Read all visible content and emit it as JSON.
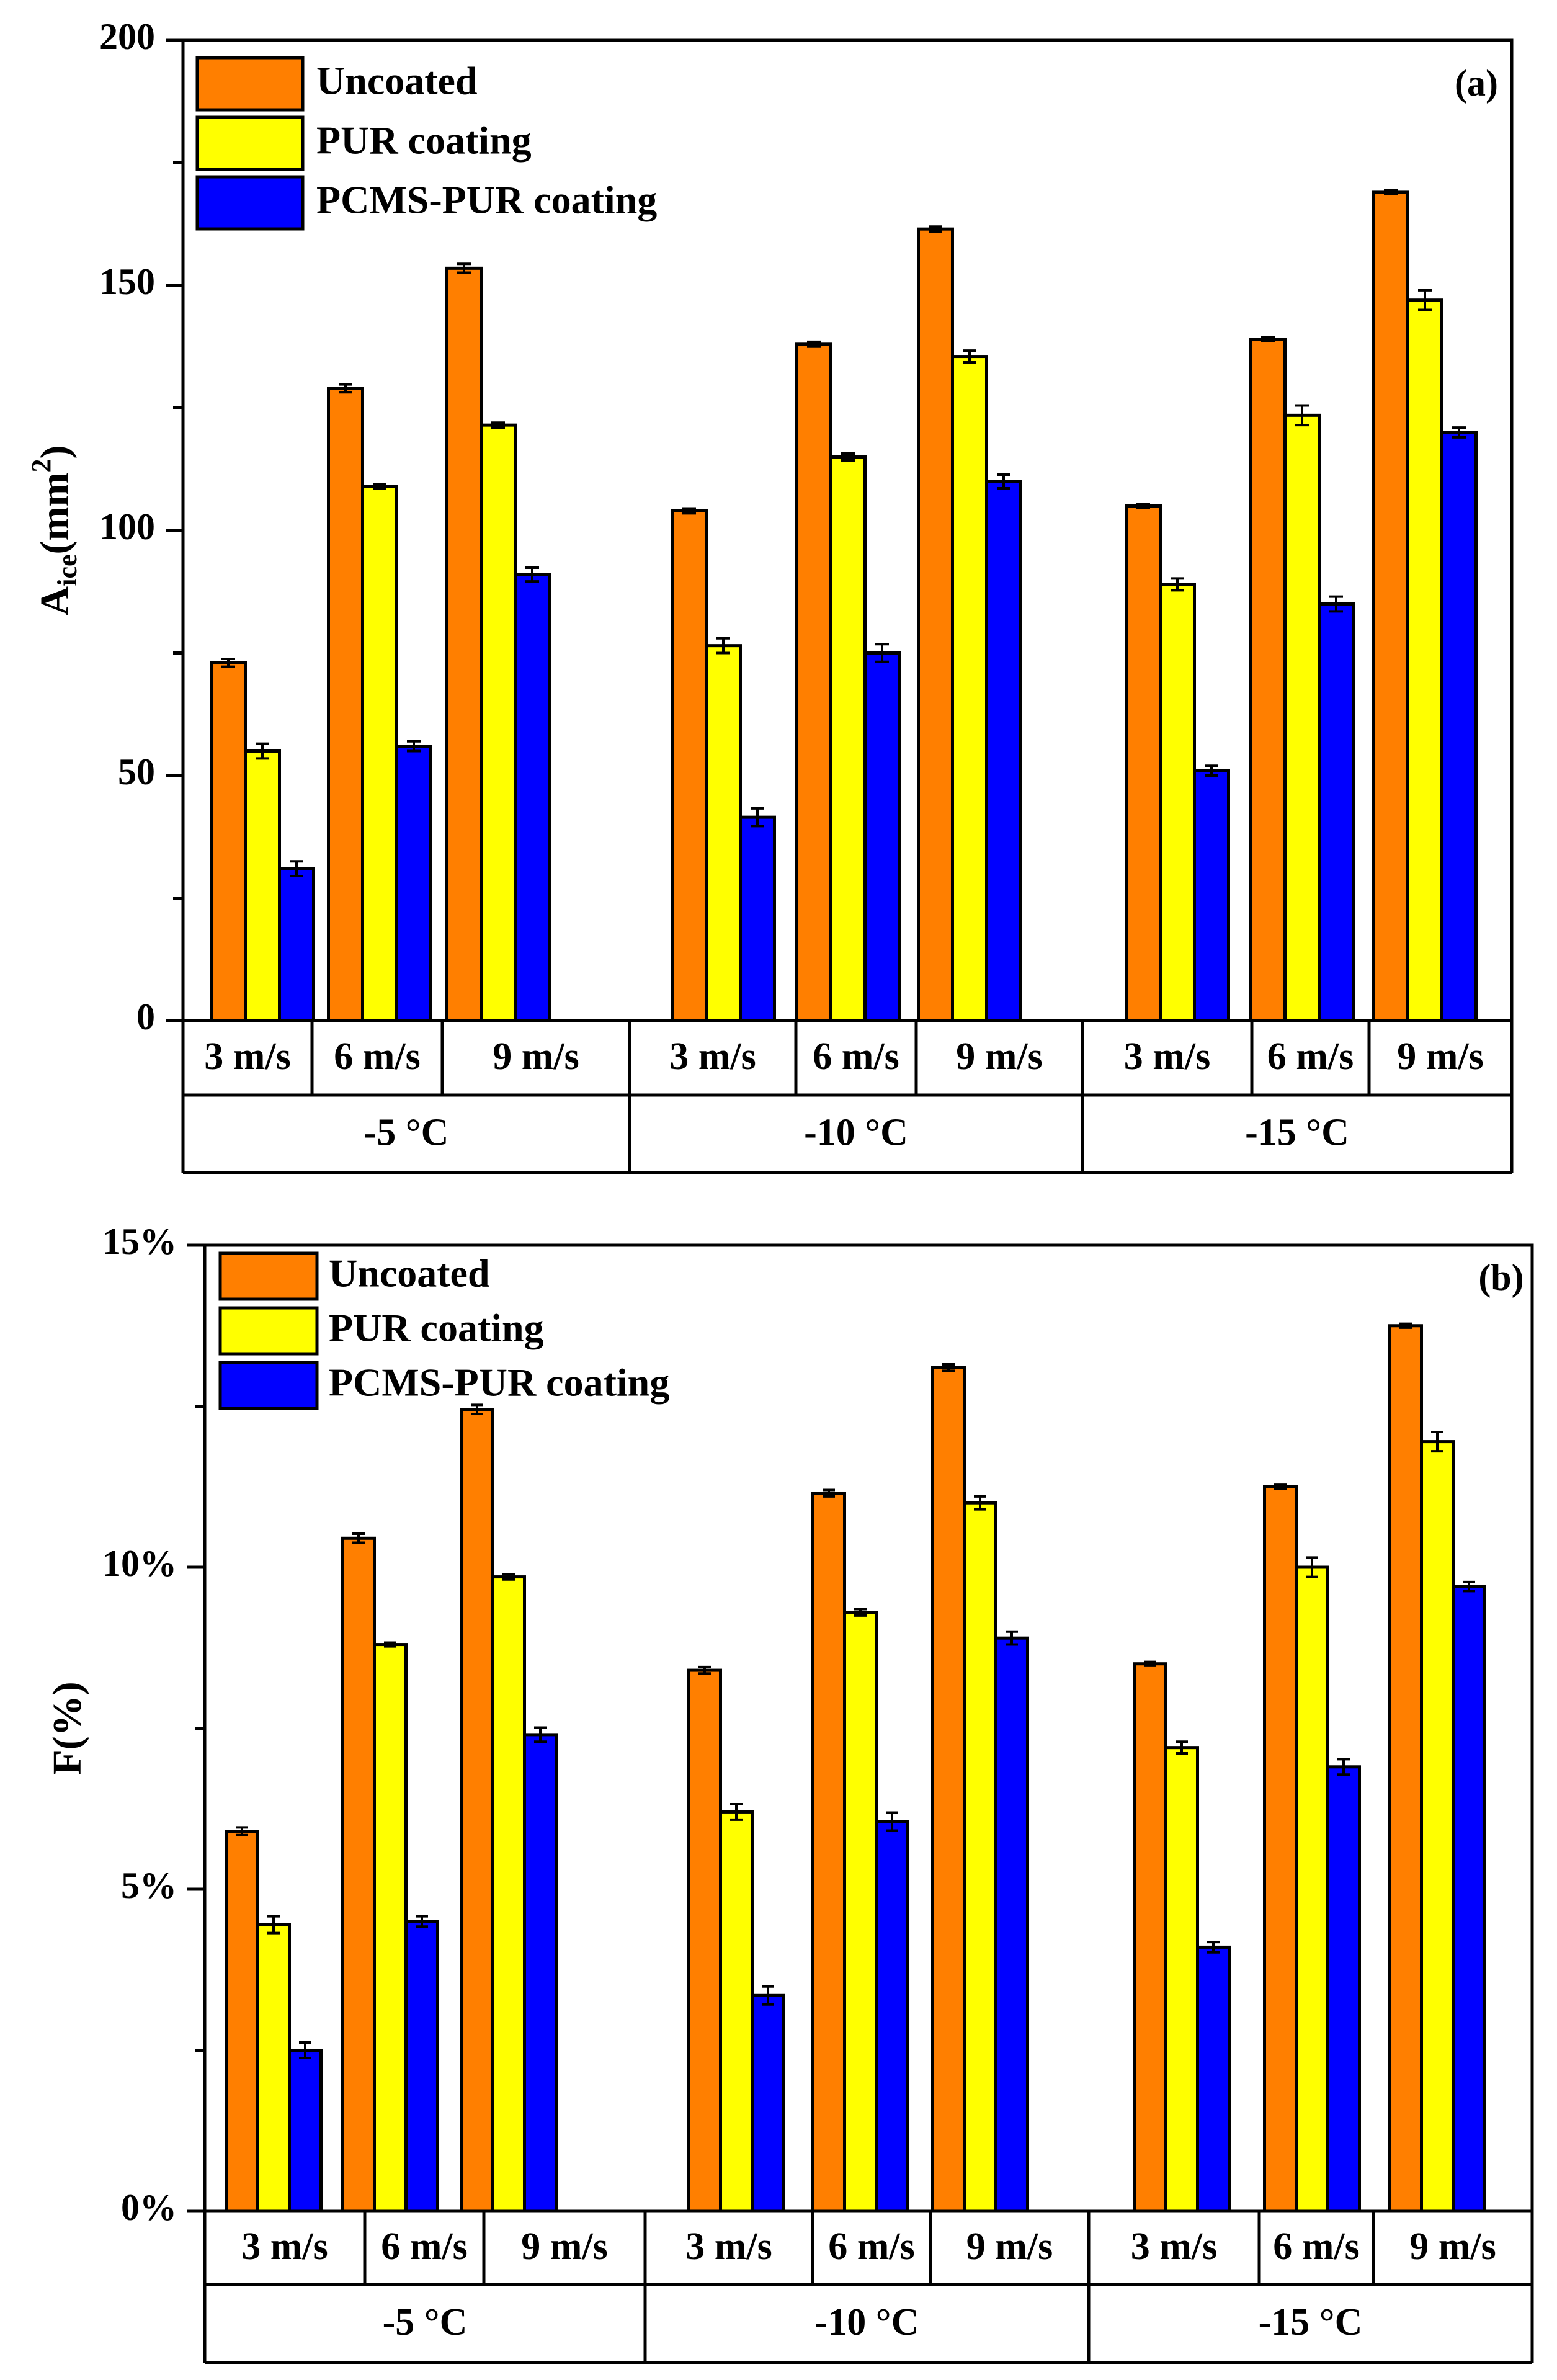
{
  "colors": {
    "uncoated": "#ff7f00",
    "pur": "#ffff00",
    "pcms": "#0000ff",
    "axis": "#000000",
    "background": "#ffffff"
  },
  "chart_data": [
    {
      "type": "bar",
      "panel_label": "(a)",
      "title": "",
      "xlabel": "",
      "ylabel": "Aice(mm2)",
      "ylabel_parts": {
        "main": "A",
        "sub": "ice",
        "paren_open": "(mm",
        "sup": "2",
        "paren_close": ")"
      },
      "ylim": [
        0,
        200
      ],
      "yticks": [
        0,
        50,
        100,
        150,
        200
      ],
      "ytick_labels": [
        "0",
        "50",
        "100",
        "150",
        "200"
      ],
      "grid": false,
      "legend_position": "top-left",
      "groups": [
        "-5 °C",
        "-10 °C",
        "-15 °C"
      ],
      "categories": [
        "3 m/s",
        "6 m/s",
        "9 m/s",
        "3 m/s",
        "6 m/s",
        "9 m/s",
        "3 m/s",
        "6 m/s",
        "9 m/s"
      ],
      "series": [
        {
          "name": "Uncoated",
          "color_key": "uncoated",
          "values": [
            73,
            129,
            153.5,
            104,
            138,
            161.5,
            105,
            139,
            169
          ],
          "errors": [
            0.8,
            0.8,
            0.9,
            0.5,
            0.5,
            0.5,
            0.4,
            0.4,
            0.4
          ]
        },
        {
          "name": "PUR coating",
          "color_key": "pur",
          "values": [
            55,
            109,
            121.5,
            76.5,
            115,
            135.5,
            89,
            123.5,
            147
          ],
          "errors": [
            1.5,
            0.4,
            0.5,
            1.5,
            0.7,
            1.2,
            1.2,
            2.0,
            2.0
          ]
        },
        {
          "name": "PCMS-PUR coating",
          "color_key": "pcms",
          "values": [
            31,
            56,
            91,
            41.5,
            75,
            110,
            51,
            85,
            120
          ],
          "errors": [
            1.5,
            1.0,
            1.4,
            1.8,
            1.8,
            1.4,
            1.0,
            1.5,
            1.0
          ]
        }
      ]
    },
    {
      "type": "bar",
      "panel_label": "(b)",
      "title": "",
      "xlabel": "",
      "ylabel": "F(%)",
      "ylim": [
        0,
        15
      ],
      "yticks": [
        0,
        5,
        10,
        15
      ],
      "ytick_labels": [
        "0%",
        "5%",
        "10%",
        "15%"
      ],
      "grid": false,
      "legend_position": "top-left",
      "groups": [
        "-5 °C",
        "-10 °C",
        "-15 °C"
      ],
      "categories": [
        "3 m/s",
        "6 m/s",
        "9 m/s",
        "3 m/s",
        "6 m/s",
        "9 m/s",
        "3 m/s",
        "6 m/s",
        "9 m/s"
      ],
      "series": [
        {
          "name": "Uncoated",
          "color_key": "uncoated",
          "values": [
            5.9,
            10.45,
            12.45,
            8.4,
            11.15,
            13.1,
            8.5,
            11.25,
            13.75
          ],
          "errors": [
            0.06,
            0.07,
            0.07,
            0.05,
            0.05,
            0.05,
            0.03,
            0.03,
            0.03
          ]
        },
        {
          "name": "PUR coating",
          "color_key": "pur",
          "values": [
            4.45,
            8.8,
            9.85,
            6.2,
            9.3,
            11.0,
            7.2,
            10.0,
            11.95
          ],
          "errors": [
            0.13,
            0.03,
            0.04,
            0.12,
            0.05,
            0.1,
            0.09,
            0.15,
            0.15
          ]
        },
        {
          "name": "PCMS-PUR coating",
          "color_key": "pcms",
          "values": [
            2.5,
            4.5,
            7.4,
            3.35,
            6.05,
            8.9,
            4.1,
            6.9,
            9.7
          ],
          "errors": [
            0.12,
            0.08,
            0.11,
            0.14,
            0.14,
            0.1,
            0.08,
            0.12,
            0.07
          ]
        }
      ]
    }
  ]
}
